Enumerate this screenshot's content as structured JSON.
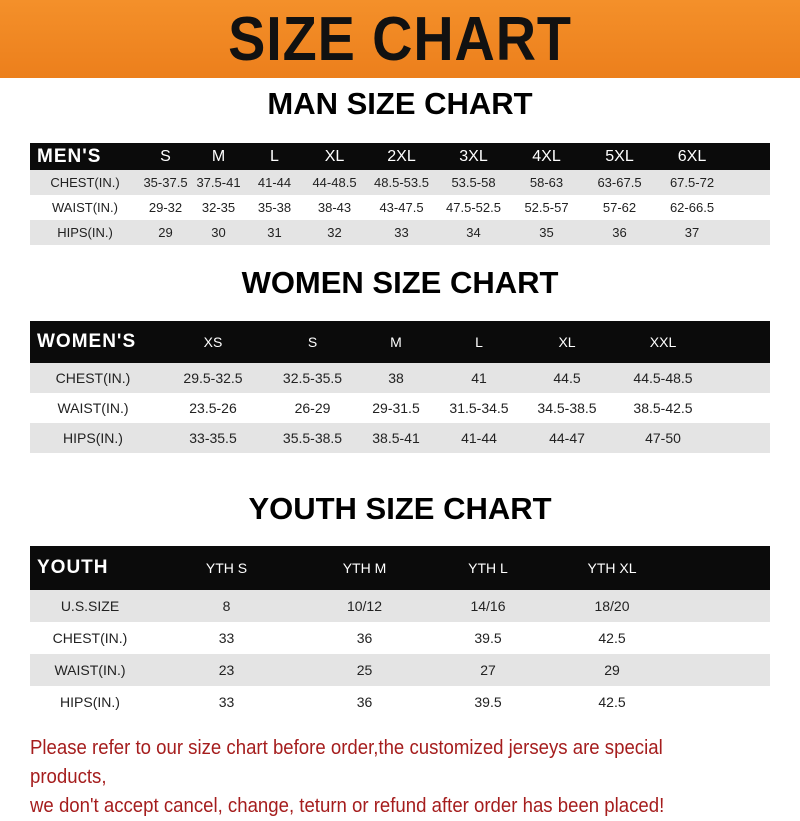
{
  "title": "SIZE CHART",
  "men": {
    "title": "MAN SIZE CHART",
    "header": [
      "MEN'S",
      "S",
      "M",
      "L",
      "XL",
      "2XL",
      "3XL",
      "4XL",
      "5XL",
      "6XL"
    ],
    "rows": [
      [
        "CHEST(IN.)",
        "35-37.5",
        "37.5-41",
        "41-44",
        "44-48.5",
        "48.5-53.5",
        "53.5-58",
        "58-63",
        "63-67.5",
        "67.5-72"
      ],
      [
        "WAIST(IN.)",
        "29-32",
        "32-35",
        "35-38",
        "38-43",
        "43-47.5",
        "47.5-52.5",
        "52.5-57",
        "57-62",
        "62-66.5"
      ],
      [
        "HIPS(IN.)",
        "29",
        "30",
        "31",
        "32",
        "33",
        "34",
        "35",
        "36",
        "37"
      ]
    ]
  },
  "women": {
    "title": "WOMEN SIZE CHART",
    "header": [
      "WOMEN'S",
      "XS",
      "S",
      "M",
      "L",
      "XL",
      "XXL"
    ],
    "rows": [
      [
        "CHEST(IN.)",
        "29.5-32.5",
        "32.5-35.5",
        "38",
        "41",
        "44.5",
        "44.5-48.5"
      ],
      [
        "WAIST(IN.)",
        "23.5-26",
        "26-29",
        "29-31.5",
        "31.5-34.5",
        "34.5-38.5",
        "38.5-42.5"
      ],
      [
        "HIPS(IN.)",
        "33-35.5",
        "35.5-38.5",
        "38.5-41",
        "41-44",
        "44-47",
        "47-50"
      ]
    ]
  },
  "youth": {
    "title": "YOUTH SIZE CHART",
    "header": [
      "YOUTH",
      "YTH S",
      "YTH M",
      "YTH L",
      "YTH XL"
    ],
    "rows": [
      [
        "U.S.SIZE",
        "8",
        "10/12",
        "14/16",
        "18/20"
      ],
      [
        "CHEST(IN.)",
        "33",
        "36",
        "39.5",
        "42.5"
      ],
      [
        "WAIST(IN.)",
        "23",
        "25",
        "27",
        "29"
      ],
      [
        "HIPS(IN.)",
        "33",
        "36",
        "39.5",
        "42.5"
      ]
    ]
  },
  "note": [
    "Please refer to our size chart before order,the customized jerseys are special products,",
    "we don't accept cancel, change, teturn or refund after order has been placed!"
  ]
}
